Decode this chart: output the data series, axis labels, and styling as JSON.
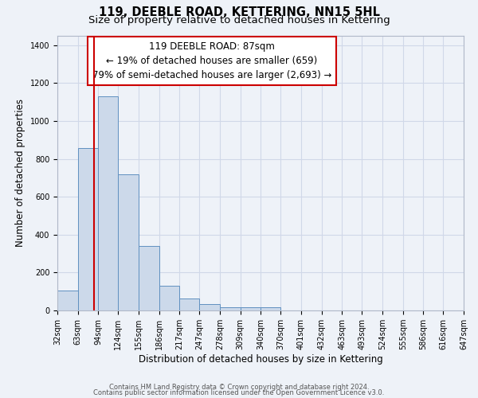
{
  "title": "119, DEEBLE ROAD, KETTERING, NN15 5HL",
  "subtitle": "Size of property relative to detached houses in Kettering",
  "xlabel": "Distribution of detached houses by size in Kettering",
  "ylabel": "Number of detached properties",
  "bar_edges": [
    32,
    63,
    94,
    124,
    155,
    186,
    217,
    247,
    278,
    309,
    340,
    370,
    401,
    432,
    463,
    493,
    524,
    555,
    586,
    616,
    647
  ],
  "bar_heights": [
    107,
    857,
    1130,
    720,
    340,
    130,
    62,
    32,
    18,
    16,
    15,
    0,
    0,
    0,
    0,
    0,
    0,
    0,
    0,
    0
  ],
  "bar_color": "#ccd9ea",
  "bar_edge_color": "#6090c0",
  "vline_x": 87,
  "vline_color": "#cc0000",
  "annotation_line1": "119 DEEBLE ROAD: 87sqm",
  "annotation_line2": "← 19% of detached houses are smaller (659)",
  "annotation_line3": "79% of semi-detached houses are larger (2,693) →",
  "annotation_box_color": "#ffffff",
  "annotation_box_edge": "#cc0000",
  "ylim": [
    0,
    1450
  ],
  "yticks": [
    0,
    200,
    400,
    600,
    800,
    1000,
    1200,
    1400
  ],
  "tick_labels": [
    "32sqm",
    "63sqm",
    "94sqm",
    "124sqm",
    "155sqm",
    "186sqm",
    "217sqm",
    "247sqm",
    "278sqm",
    "309sqm",
    "340sqm",
    "370sqm",
    "401sqm",
    "432sqm",
    "463sqm",
    "493sqm",
    "524sqm",
    "555sqm",
    "586sqm",
    "616sqm",
    "647sqm"
  ],
  "footer_line1": "Contains HM Land Registry data © Crown copyright and database right 2024.",
  "footer_line2": "Contains public sector information licensed under the Open Government Licence v3.0.",
  "bg_color": "#eef2f8",
  "grid_color": "#d0d8e8",
  "title_fontsize": 10.5,
  "subtitle_fontsize": 9.5,
  "axis_label_fontsize": 8.5,
  "tick_fontsize": 7,
  "annotation_fontsize": 8.5,
  "footer_fontsize": 6.0
}
